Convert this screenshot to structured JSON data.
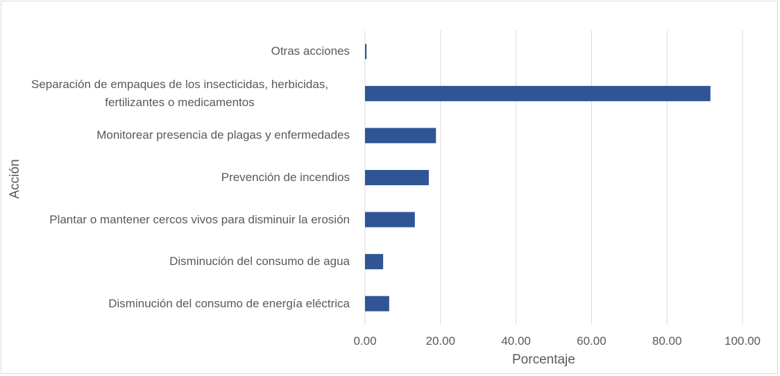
{
  "chart_data": {
    "type": "bar",
    "orientation": "horizontal",
    "categories": [
      "Otras acciones",
      "Separación de empaques de los insecticidas, herbicidas, fertilizantes o medicamentos",
      "Monitorear presencia de plagas y enfermedades",
      "Prevención de incendios",
      "Plantar o mantener cercos vivos para disminuir la erosión",
      "Disminución del consumo de agua",
      "Disminución del consumo de energía eléctrica"
    ],
    "values": [
      0.4,
      91.5,
      18.8,
      16.9,
      13.2,
      4.8,
      6.4
    ],
    "color": "#2f5597",
    "xlabel": "Porcentaje",
    "ylabel": "Acción",
    "xlim": [
      0,
      100
    ],
    "xticks": [
      {
        "value": 0,
        "label": "0.00"
      },
      {
        "value": 20,
        "label": "20.00"
      },
      {
        "value": 40,
        "label": "40.00"
      },
      {
        "value": 60,
        "label": "60.00"
      },
      {
        "value": 80,
        "label": "80.00"
      },
      {
        "value": 100,
        "label": "100.00"
      }
    ],
    "grid": true
  }
}
